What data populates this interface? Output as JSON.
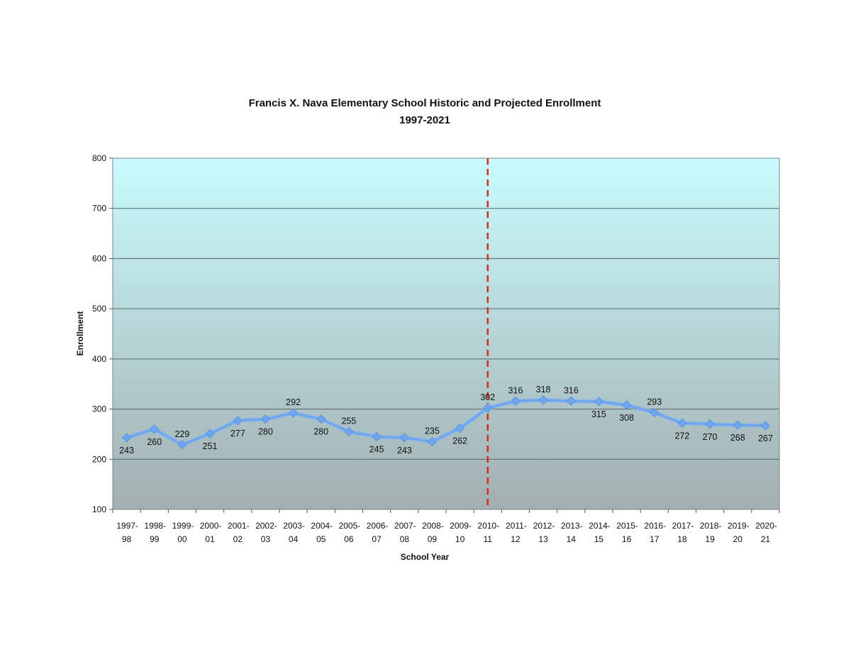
{
  "chart_data": {
    "type": "line",
    "title": "Francis X. Nava Elementary School Historic and Projected Enrollment",
    "subtitle": "1997-2021",
    "xlabel": "School Year",
    "ylabel": "Enrollment",
    "ylim": [
      100,
      800
    ],
    "yticks": [
      "100",
      "200",
      "300",
      "400",
      "500",
      "600",
      "700",
      "800"
    ],
    "grid": true,
    "categories": [
      [
        "1997-",
        "98"
      ],
      [
        "1998-",
        "99"
      ],
      [
        "1999-",
        "00"
      ],
      [
        "2000-",
        "01"
      ],
      [
        "2001-",
        "02"
      ],
      [
        "2002-",
        "03"
      ],
      [
        "2003-",
        "04"
      ],
      [
        "2004-",
        "05"
      ],
      [
        "2005-",
        "06"
      ],
      [
        "2006-",
        "07"
      ],
      [
        "2007-",
        "08"
      ],
      [
        "2008-",
        "09"
      ],
      [
        "2009-",
        "10"
      ],
      [
        "2010-",
        "11"
      ],
      [
        "2011-",
        "12"
      ],
      [
        "2012-",
        "13"
      ],
      [
        "2013-",
        "14"
      ],
      [
        "2014-",
        "15"
      ],
      [
        "2015-",
        "16"
      ],
      [
        "2016-",
        "17"
      ],
      [
        "2017-",
        "18"
      ],
      [
        "2018-",
        "19"
      ],
      [
        "2019-",
        "20"
      ],
      [
        "2020-",
        "21"
      ]
    ],
    "series": [
      {
        "values": [
          243,
          260,
          229,
          251,
          277,
          280,
          292,
          280,
          255,
          245,
          243,
          235,
          262,
          302,
          316,
          318,
          316,
          315,
          308,
          293,
          272,
          270,
          268,
          267
        ],
        "data_labels": [
          "243",
          "260",
          "229",
          "251",
          "277",
          "280",
          "292",
          "280",
          "255",
          "245",
          "243",
          "235",
          "262",
          "302",
          "316",
          "318",
          "316",
          "315",
          "308",
          "293",
          "272",
          "270",
          "268",
          "267"
        ],
        "label_position": [
          "below",
          "below",
          "above",
          "below",
          "below",
          "below",
          "above",
          "below",
          "above",
          "below",
          "below",
          "above",
          "below",
          "above",
          "above",
          "above",
          "above",
          "below",
          "below",
          "above",
          "below",
          "below",
          "below",
          "below"
        ],
        "color": "#6ea6f0"
      }
    ],
    "divider": {
      "between": [
        "2010-11",
        "2011-12"
      ],
      "color": "#d42a20",
      "style": "dashed"
    },
    "colors": {
      "plot_top": "#c8fcfe",
      "plot_bottom": "#a3aeb0",
      "gridline": "#5a6466"
    }
  }
}
